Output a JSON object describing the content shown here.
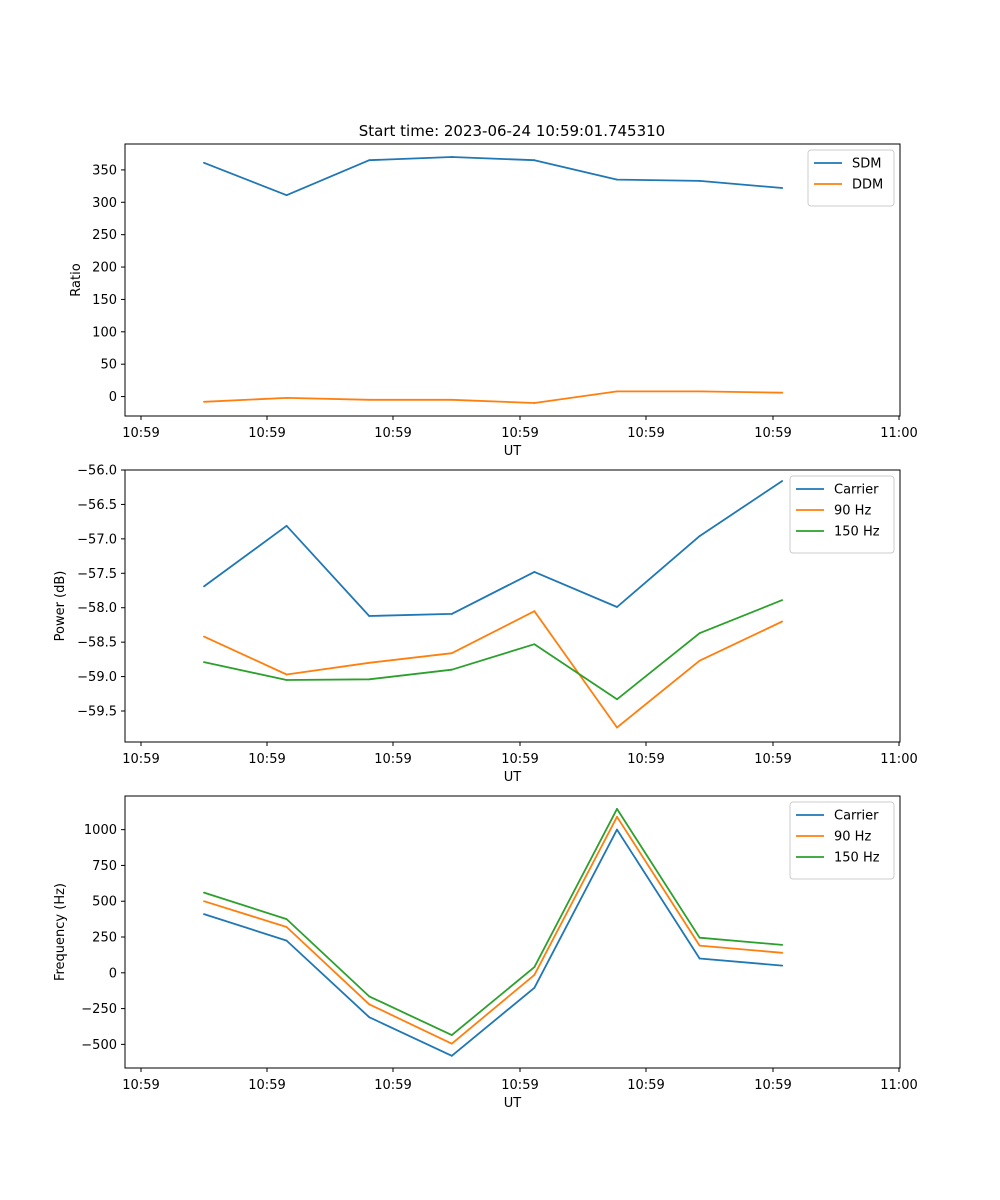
{
  "figure_title": "Start time: 2023-06-24 10:59:01.745310",
  "colors": {
    "blue": "#1f77b4",
    "orange": "#ff7f0e",
    "green": "#2ca02c"
  },
  "chart_data": [
    {
      "type": "line",
      "xlabel": "UT",
      "ylabel": "Ratio",
      "x_tick_labels": [
        "10:59",
        "10:59",
        "10:59",
        "10:59",
        "10:59",
        "10:59",
        "11:00"
      ],
      "ylim": [
        -30,
        390
      ],
      "yticks": [
        0,
        50,
        100,
        150,
        200,
        250,
        300,
        350
      ],
      "legend": "top-right",
      "series": [
        {
          "name": "SDM",
          "color": "#1f77b4",
          "values": [
            361,
            311,
            365,
            370,
            365,
            335,
            333,
            322
          ]
        },
        {
          "name": "DDM",
          "color": "#ff7f0e",
          "values": [
            -8,
            -2,
            -5,
            -5,
            -10,
            8,
            8,
            6
          ]
        }
      ]
    },
    {
      "type": "line",
      "xlabel": "UT",
      "ylabel": "Power (dB)",
      "x_tick_labels": [
        "10:59",
        "10:59",
        "10:59",
        "10:59",
        "10:59",
        "10:59",
        "11:00"
      ],
      "ylim": [
        -59.95,
        -56.0
      ],
      "yticks": [
        -59.5,
        -59.0,
        -58.5,
        -58.0,
        -57.5,
        -57.0,
        -56.5,
        -56.0
      ],
      "legend": "top-right",
      "series": [
        {
          "name": "Carrier",
          "color": "#1f77b4",
          "values": [
            -57.69,
            -56.81,
            -58.12,
            -58.09,
            -57.48,
            -57.99,
            -56.96,
            -56.16
          ]
        },
        {
          "name": "90 Hz",
          "color": "#ff7f0e",
          "values": [
            -58.42,
            -58.97,
            -58.8,
            -58.66,
            -58.05,
            -59.74,
            -58.77,
            -58.2
          ]
        },
        {
          "name": "150 Hz",
          "color": "#2ca02c",
          "values": [
            -58.79,
            -59.05,
            -59.04,
            -58.9,
            -58.53,
            -59.33,
            -58.37,
            -57.89
          ]
        }
      ]
    },
    {
      "type": "line",
      "xlabel": "UT",
      "ylabel": "Frequency (Hz)",
      "x_tick_labels": [
        "10:59",
        "10:59",
        "10:59",
        "10:59",
        "10:59",
        "10:59",
        "11:00"
      ],
      "ylim": [
        -665,
        1235
      ],
      "yticks": [
        -500,
        -250,
        0,
        250,
        500,
        750,
        1000
      ],
      "legend": "top-right",
      "series": [
        {
          "name": "Carrier",
          "color": "#1f77b4",
          "values": [
            410,
            225,
            -310,
            -580,
            -105,
            1000,
            100,
            50
          ]
        },
        {
          "name": "90 Hz",
          "color": "#ff7f0e",
          "values": [
            500,
            320,
            -220,
            -495,
            -15,
            1090,
            190,
            140
          ]
        },
        {
          "name": "150 Hz",
          "color": "#2ca02c",
          "values": [
            560,
            375,
            -165,
            -435,
            40,
            1145,
            245,
            195
          ]
        }
      ]
    }
  ]
}
